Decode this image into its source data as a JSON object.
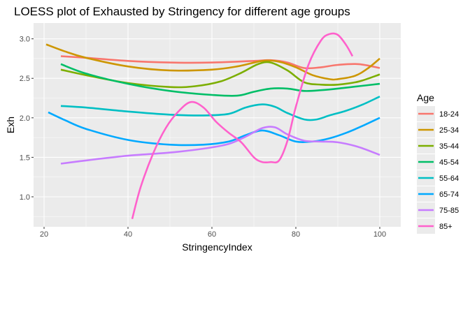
{
  "chart_data": {
    "type": "line",
    "title": "LOESS plot of Exhausted by Stringency for different age groups",
    "xlabel": "StringencyIndex",
    "ylabel": "Exh",
    "xlim": [
      17.5,
      105
    ],
    "ylim": [
      0.62,
      3.2
    ],
    "x_ticks": [
      20,
      40,
      60,
      80,
      100
    ],
    "x_tick_labels": [
      "20",
      "40",
      "60",
      "80",
      "100"
    ],
    "y_ticks": [
      1.0,
      1.5,
      2.0,
      2.5,
      3.0
    ],
    "y_tick_labels": [
      "1.0",
      "1.5",
      "2.0",
      "2.5",
      "3.0"
    ],
    "grid": true,
    "background": "#ebebeb",
    "legend": {
      "title": "Age",
      "placement": "right"
    },
    "series": [
      {
        "name": "18-24",
        "color": "#F8766D",
        "x": [
          24,
          30,
          40,
          50,
          60,
          70,
          74,
          78,
          82,
          86,
          90,
          95,
          100
        ],
        "y": [
          2.78,
          2.76,
          2.72,
          2.7,
          2.7,
          2.72,
          2.73,
          2.7,
          2.63,
          2.64,
          2.67,
          2.68,
          2.63
        ]
      },
      {
        "name": "25-34",
        "color": "#CD9600",
        "x": [
          20.5,
          25,
          30,
          40,
          50,
          60,
          66,
          72,
          76,
          80,
          84,
          88,
          90,
          94,
          97,
          100
        ],
        "y": [
          2.93,
          2.84,
          2.76,
          2.65,
          2.6,
          2.61,
          2.65,
          2.72,
          2.71,
          2.64,
          2.54,
          2.49,
          2.49,
          2.53,
          2.62,
          2.75
        ]
      },
      {
        "name": "35-44",
        "color": "#7CAE00",
        "x": [
          24,
          30,
          40,
          50,
          56,
          62,
          67,
          71,
          74,
          78,
          82,
          86,
          90,
          95,
          100
        ],
        "y": [
          2.61,
          2.54,
          2.44,
          2.39,
          2.4,
          2.46,
          2.57,
          2.68,
          2.7,
          2.6,
          2.45,
          2.42,
          2.42,
          2.46,
          2.55
        ]
      },
      {
        "name": "45-54",
        "color": "#00BE67",
        "x": [
          24,
          30,
          40,
          50,
          60,
          66,
          70,
          74,
          78,
          82,
          86,
          90,
          95,
          100
        ],
        "y": [
          2.68,
          2.56,
          2.43,
          2.34,
          2.29,
          2.28,
          2.33,
          2.37,
          2.37,
          2.34,
          2.35,
          2.37,
          2.4,
          2.43
        ]
      },
      {
        "name": "55-64",
        "color": "#00BFC4",
        "x": [
          24,
          30,
          40,
          50,
          58,
          64,
          68,
          72,
          75,
          78,
          82,
          85,
          88,
          92,
          96,
          100
        ],
        "y": [
          2.15,
          2.13,
          2.08,
          2.04,
          2.03,
          2.05,
          2.13,
          2.17,
          2.14,
          2.06,
          1.98,
          1.98,
          2.03,
          2.09,
          2.17,
          2.27
        ]
      },
      {
        "name": "65-74",
        "color": "#00A9FF",
        "x": [
          21,
          25,
          30,
          40,
          50,
          58,
          64,
          68,
          72,
          76,
          80,
          84,
          88,
          92,
          96,
          100
        ],
        "y": [
          2.07,
          1.97,
          1.86,
          1.72,
          1.66,
          1.66,
          1.7,
          1.78,
          1.84,
          1.78,
          1.7,
          1.7,
          1.74,
          1.81,
          1.9,
          2.0
        ]
      },
      {
        "name": "75-85",
        "color": "#C77CFF",
        "x": [
          24,
          30,
          40,
          50,
          58,
          64,
          68,
          72,
          75,
          78,
          82,
          86,
          90,
          95,
          100
        ],
        "y": [
          1.42,
          1.46,
          1.52,
          1.56,
          1.61,
          1.67,
          1.76,
          1.87,
          1.88,
          1.79,
          1.71,
          1.7,
          1.69,
          1.63,
          1.53
        ]
      },
      {
        "name": "85+",
        "color": "#FF61CC",
        "x": [
          41,
          43,
          46,
          49,
          52,
          55,
          58,
          61,
          64,
          67,
          70,
          72,
          74,
          76,
          78,
          80,
          83,
          86,
          88,
          90,
          92,
          93.5
        ],
        "y": [
          0.72,
          1.12,
          1.55,
          1.87,
          2.08,
          2.2,
          2.13,
          1.95,
          1.81,
          1.69,
          1.5,
          1.44,
          1.44,
          1.46,
          1.71,
          2.14,
          2.67,
          2.98,
          3.06,
          3.05,
          2.92,
          2.78
        ]
      }
    ]
  }
}
